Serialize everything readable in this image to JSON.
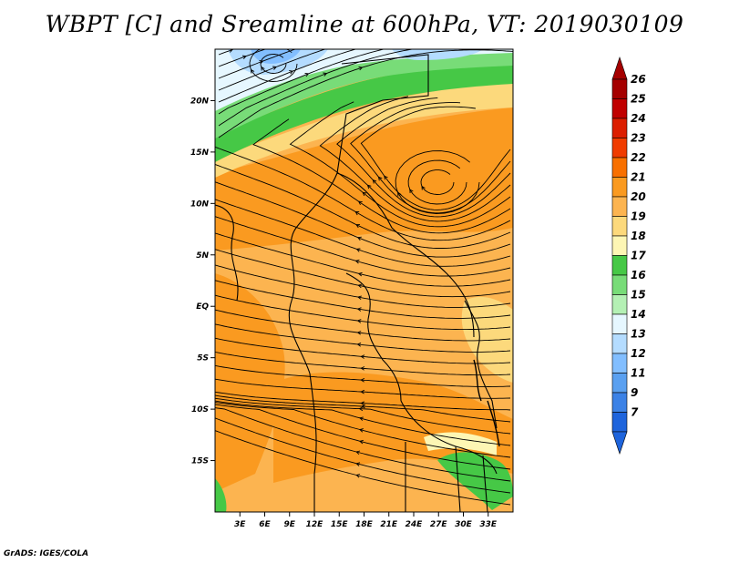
{
  "title": "WBPT [C] and Sreamline at 600hPa, VT: 2019030109",
  "footer": "GrADS: IGES/COLA",
  "map": {
    "lon_range": [
      0,
      36
    ],
    "lat_range": [
      -20,
      25
    ],
    "lat_ticks": [
      {
        "value": 20,
        "label": "20N"
      },
      {
        "value": 15,
        "label": "15N"
      },
      {
        "value": 10,
        "label": "10N"
      },
      {
        "value": 5,
        "label": "5N"
      },
      {
        "value": 0,
        "label": "EQ"
      },
      {
        "value": -5,
        "label": "5S"
      },
      {
        "value": -10,
        "label": "10S"
      },
      {
        "value": -15,
        "label": "15S"
      }
    ],
    "lon_ticks": [
      {
        "value": 3,
        "label": "3E"
      },
      {
        "value": 6,
        "label": "6E"
      },
      {
        "value": 9,
        "label": "9E"
      },
      {
        "value": 12,
        "label": "12E"
      },
      {
        "value": 15,
        "label": "15E"
      },
      {
        "value": 18,
        "label": "18E"
      },
      {
        "value": 21,
        "label": "21E"
      },
      {
        "value": 24,
        "label": "24E"
      },
      {
        "value": 27,
        "label": "27E"
      },
      {
        "value": 30,
        "label": "30E"
      },
      {
        "value": 33,
        "label": "33E"
      }
    ]
  },
  "colorbar": {
    "levels": [
      {
        "label": "26",
        "color": "#a50000"
      },
      {
        "label": "25",
        "color": "#c00000"
      },
      {
        "label": "24",
        "color": "#dc1e00"
      },
      {
        "label": "23",
        "color": "#f03c00"
      },
      {
        "label": "22",
        "color": "#f87000"
      },
      {
        "label": "21",
        "color": "#fa9a20"
      },
      {
        "label": "20",
        "color": "#fcb450"
      },
      {
        "label": "19",
        "color": "#fcd97c"
      },
      {
        "label": "18",
        "color": "#fdf6b4"
      },
      {
        "label": "17",
        "color": "#46c846"
      },
      {
        "label": "16",
        "color": "#78dc78"
      },
      {
        "label": "15",
        "color": "#b4f0b4"
      },
      {
        "label": "14",
        "color": "#e6f7ff"
      },
      {
        "label": "13",
        "color": "#b4dcff"
      },
      {
        "label": "12",
        "color": "#82beff"
      },
      {
        "label": "11",
        "color": "#5aa0f0"
      },
      {
        "label": "9",
        "color": "#3c82e6"
      },
      {
        "label": "7",
        "color": "#1e64dc"
      }
    ],
    "top_triangle_color": "#a50000",
    "bottom_triangle_color": "#1e64dc"
  }
}
